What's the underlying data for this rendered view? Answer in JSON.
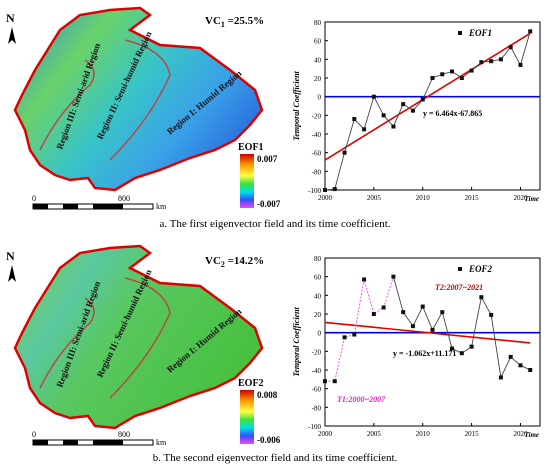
{
  "panel_a": {
    "vc_label": "VC",
    "vc_sub": "1",
    "vc_value": " =25.5%",
    "north": "N",
    "regions": [
      "Region III: Semi-arid Region",
      "Region II: Semi-humid Region",
      "Region I: Humid Region"
    ],
    "colorbar_title": "EOF1",
    "colorbar_max": "0.007",
    "colorbar_min": "-0.007",
    "scale_labels": [
      "0",
      "800"
    ],
    "scale_unit": "km",
    "caption": "a. The first eigenvector field and its time coefficient."
  },
  "panel_b": {
    "vc_label": "VC",
    "vc_sub": "2",
    "vc_value": " =14.2%",
    "north": "N",
    "regions": [
      "Region III: Semi-arid Region",
      "Region II: Semi-humid Region",
      "Region I: Humid Region"
    ],
    "colorbar_title": "EOF2",
    "colorbar_max": "0.008",
    "colorbar_min": "-0.006",
    "scale_labels": [
      "0",
      "800"
    ],
    "scale_unit": "km",
    "caption": "b. The second eigenvector field and its time coefficient."
  },
  "colors": {
    "series": "#444444",
    "trend": "#e00000",
    "zero_line": "#0000dd",
    "dotted": "#e060e0",
    "map_outline": "#e00000",
    "t1_label": "#e020d0",
    "t2_label": "#c00000"
  },
  "chart_data": [
    {
      "type": "line",
      "legend": "EOF1",
      "ylabel": "Temporal Coefficient",
      "xlabel": "Time",
      "xlim": [
        2000,
        2022
      ],
      "ylim": [
        -100,
        80
      ],
      "xticks": [
        2000,
        2005,
        2010,
        2015,
        2020
      ],
      "yticks": [
        -100,
        -80,
        -60,
        -40,
        -20,
        0,
        20,
        40,
        60,
        80
      ],
      "x": [
        2000,
        2001,
        2002,
        2003,
        2004,
        2005,
        2006,
        2007,
        2008,
        2009,
        2010,
        2011,
        2012,
        2013,
        2014,
        2015,
        2016,
        2017,
        2018,
        2019,
        2020,
        2021
      ],
      "values": [
        -100,
        -99,
        -60,
        -24,
        -35,
        0,
        -20,
        -32,
        -8,
        -15,
        -3,
        20,
        24,
        27,
        20,
        28,
        37,
        38,
        40,
        53,
        34,
        70
      ],
      "trend": {
        "label": "y = 6.464x-67.865",
        "start": [
          2000,
          -67.9
        ],
        "end": [
          2021,
          67.9
        ]
      },
      "zero_line": 0
    },
    {
      "type": "line",
      "legend": "EOF2",
      "ylabel": "Temporal Coefficient",
      "xlabel": "Time",
      "xlim": [
        2000,
        2022
      ],
      "ylim": [
        -100,
        80
      ],
      "xticks": [
        2000,
        2005,
        2010,
        2015,
        2020
      ],
      "yticks": [
        -100,
        -80,
        -60,
        -40,
        -20,
        0,
        20,
        40,
        60,
        80
      ],
      "x": [
        2000,
        2001,
        2002,
        2003,
        2004,
        2005,
        2006,
        2007,
        2008,
        2009,
        2010,
        2011,
        2012,
        2013,
        2014,
        2015,
        2016,
        2017,
        2018,
        2019,
        2020,
        2021
      ],
      "values": [
        -52,
        -52,
        -5,
        -2,
        57,
        20,
        27,
        60,
        22,
        7,
        28,
        3,
        22,
        -17,
        -22,
        -15,
        38,
        19,
        -48,
        -26,
        -35,
        -40
      ],
      "trend": {
        "label": "y = -1.062x+11.171",
        "start": [
          2000,
          11
        ],
        "end": [
          2021,
          -11
        ]
      },
      "zero_line": 0,
      "dotted_segment": [
        [
          2000,
          -52
        ],
        [
          2007,
          60
        ]
      ],
      "solid_segment_from": 2007,
      "period_labels": {
        "t1": "T1:2000~2007",
        "t2": "T2:2007~2021"
      }
    }
  ]
}
